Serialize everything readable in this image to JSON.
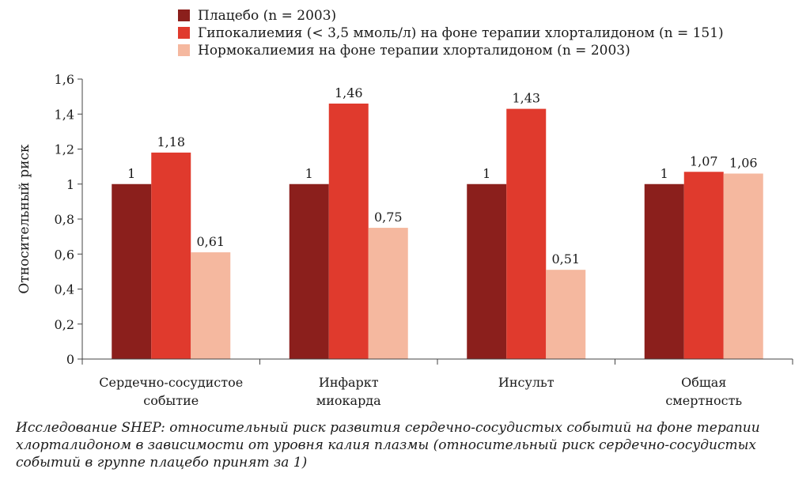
{
  "chart_data": {
    "type": "bar",
    "categories": [
      [
        "Сердечно-сосудистое",
        "событие"
      ],
      [
        "Инфаркт",
        "миокарда"
      ],
      [
        "Инсульт"
      ],
      [
        "Общая",
        "смертность"
      ]
    ],
    "series": [
      {
        "name": "Плацебо (n = 2003)",
        "color": "#8B1F1C",
        "values": [
          1,
          1,
          1,
          1
        ],
        "labels": [
          "1",
          "1",
          "1",
          "1"
        ]
      },
      {
        "name": "Гипокалиемия (< 3,5 ммоль/л) на фоне терапии хлорталидоном (n = 151)",
        "color": "#E03A2D",
        "values": [
          1.18,
          1.46,
          1.43,
          1.07
        ],
        "labels": [
          "1,18",
          "1,46",
          "1,43",
          "1,07"
        ]
      },
      {
        "name": "Нормокалиемия на фоне терапии хлорталидоном (n = 2003)",
        "color": "#F5B89F",
        "values": [
          0.61,
          0.75,
          0.51,
          1.06
        ],
        "labels": [
          "0,61",
          "0,75",
          "0,51",
          "1,06"
        ]
      }
    ],
    "ylabel": "Относительный риск",
    "ylim": [
      0,
      1.6
    ],
    "yticks": [
      0,
      0.2,
      0.4,
      0.6,
      0.8,
      1,
      1.2,
      1.4,
      1.6
    ],
    "ytick_labels": [
      "0",
      "0,2",
      "0,4",
      "0,6",
      "0,8",
      "1",
      "1,2",
      "1,4",
      "1,6"
    ],
    "legend_position": "top-left",
    "grid": false
  },
  "caption": "Исследование SHEP: относительный риск развития сердечно-сосудистых событий на фоне терапии хлорталидоном в зависимости от уровня калия плазмы (относительный риск сердечно-сосудистых событий в группе плацебо принят за 1)"
}
